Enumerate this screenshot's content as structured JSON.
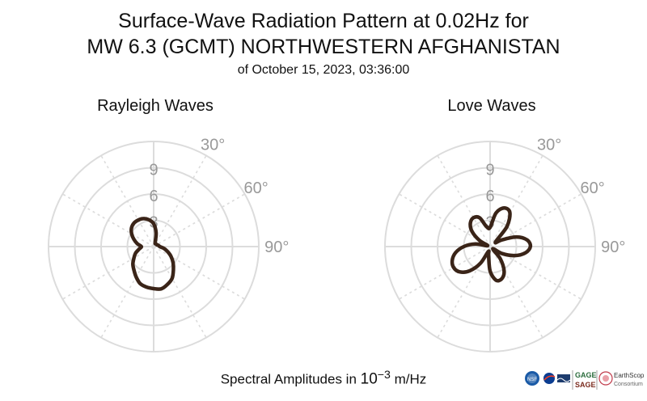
{
  "title_line1": "Surface-Wave Radiation Pattern at 0.02Hz for",
  "title_line2": "MW 6.3 (GCMT) NORTHWESTERN AFGHANISTAN",
  "title_line3": "of October 15, 2023, 03:36:00",
  "footer": {
    "prefix": "Spectral Amplitudes in ",
    "unit_base": "10",
    "unit_exp": "−3",
    "unit_suffix": " m/Hz"
  },
  "logos": {
    "nsf": "NSF",
    "gage": "GAGE",
    "sage": "SAGE",
    "earthscope": "EarthScope",
    "consortium": "Consortium"
  },
  "colors": {
    "curve": "#3a2418",
    "grid": "#dcdcdc",
    "tick": "#999999"
  },
  "chart_data": [
    {
      "type": "polar-line",
      "title": "Rayleigh Waves",
      "radial_ticks": [
        "3",
        "6",
        "9"
      ],
      "radial_range": [
        0,
        12
      ],
      "angle_ticks": [
        "30°",
        "60°",
        "90°"
      ],
      "angle_convention": "clockwise from north",
      "theta_deg": [
        0,
        10,
        20,
        30,
        40,
        50,
        60,
        70,
        80,
        90,
        100,
        110,
        120,
        130,
        140,
        150,
        160,
        170,
        180,
        190,
        200,
        210,
        220,
        230,
        240,
        250,
        260,
        270,
        280,
        290,
        300,
        310,
        320,
        330,
        340,
        350
      ],
      "amplitude": [
        2.6,
        1.6,
        0.5,
        0.4,
        0.4,
        0.4,
        0.4,
        0.5,
        0.6,
        0.7,
        1.2,
        1.7,
        2.3,
        2.9,
        3.5,
        4.2,
        4.6,
        4.9,
        4.8,
        4.7,
        4.5,
        4.0,
        3.5,
        3.1,
        2.6,
        2.2,
        1.7,
        1.4,
        1.9,
        2.4,
        2.9,
        3.3,
        3.5,
        3.5,
        3.4,
        3.1
      ]
    },
    {
      "type": "polar-line",
      "title": "Love Waves",
      "radial_ticks": [
        "3",
        "6",
        "9"
      ],
      "radial_range": [
        0,
        12
      ],
      "angle_ticks": [
        "30°",
        "60°",
        "90°"
      ],
      "angle_convention": "clockwise from north",
      "theta_deg": [
        0,
        10,
        20,
        30,
        40,
        50,
        60,
        70,
        80,
        90,
        100,
        110,
        120,
        130,
        140,
        150,
        160,
        170,
        180,
        190,
        200,
        210,
        220,
        230,
        240,
        250,
        260,
        270,
        280,
        290,
        300,
        310,
        320,
        330,
        340,
        350
      ],
      "amplitude": [
        2.2,
        3.9,
        4.7,
        4.5,
        3.0,
        0.8,
        1.5,
        3.2,
        4.3,
        4.6,
        4.1,
        3.0,
        1.6,
        0.4,
        1.8,
        3.2,
        3.9,
        3.9,
        2.8,
        1.0,
        0.6,
        2.2,
        3.6,
        4.5,
        4.8,
        4.6,
        4.0,
        3.0,
        1.7,
        0.3,
        1.4,
        2.7,
        3.5,
        3.8,
        3.5,
        2.3
      ]
    }
  ]
}
